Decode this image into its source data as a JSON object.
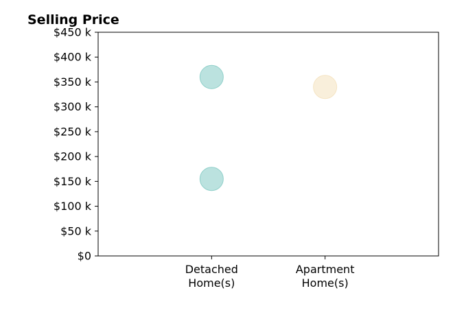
{
  "chart_data": {
    "type": "scatter",
    "title": "Selling Price",
    "xlabel": "",
    "ylabel": "",
    "categories": [
      [
        "Detached",
        "Home(s)"
      ],
      [
        "Apartment",
        "Home(s)"
      ]
    ],
    "x_positions": [
      1,
      2
    ],
    "xlim": [
      0,
      3
    ],
    "ylim": [
      0,
      450
    ],
    "y_ticks": [
      0,
      50,
      100,
      150,
      200,
      250,
      300,
      350,
      400,
      450
    ],
    "y_tick_labels": [
      "$0",
      "$50 k",
      "$100 k",
      "$150 k",
      "$200 k",
      "$250 k",
      "$300 k",
      "$350 k",
      "$400 k",
      "$450 k"
    ],
    "grid": false,
    "series": [
      {
        "category": "Detached Home(s)",
        "color": "#8ecfc9",
        "points": [
          {
            "x": 1,
            "y": 360
          },
          {
            "x": 1,
            "y": 155
          }
        ]
      },
      {
        "category": "Apartment Home(s)",
        "color": "#f5e4c3",
        "points": [
          {
            "x": 2,
            "y": 340
          }
        ]
      }
    ]
  }
}
